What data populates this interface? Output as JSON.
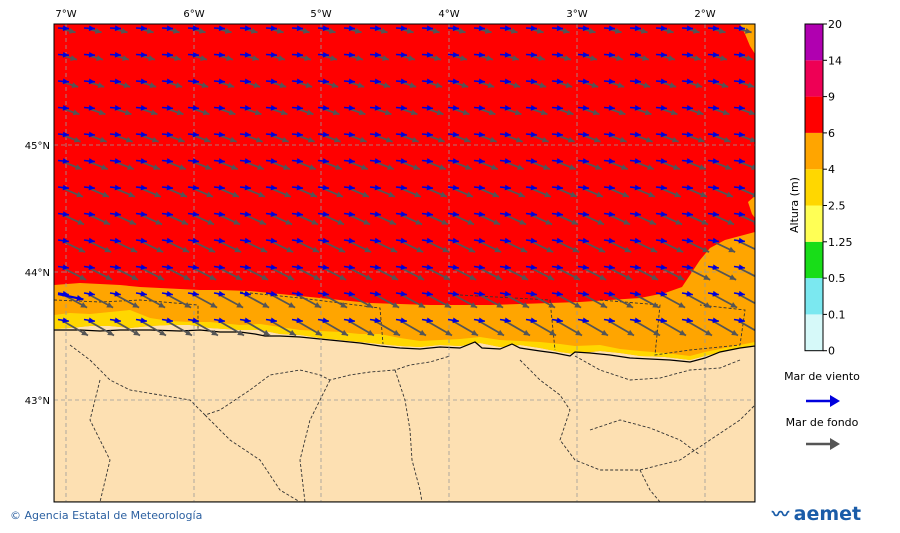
{
  "map": {
    "lon_labels": [
      "7°W",
      "6°W",
      "5°W",
      "4°W",
      "3°W",
      "2°W"
    ],
    "lat_labels": [
      "45°N",
      "44°N",
      "43°N"
    ]
  },
  "colorbar": {
    "title": "Altura (m)",
    "levels": [
      "0",
      "0.1",
      "0.5",
      "1.25",
      "2.5",
      "4",
      "6",
      "9",
      "14",
      "20"
    ],
    "colors": [
      "#d6f9f9",
      "#7be8f0",
      "#18dd18",
      "#ffff55",
      "#ffd700",
      "#ffa500",
      "#ff0000",
      "#ee0055",
      "#b000b0"
    ]
  },
  "legend": {
    "wind_sea_label": "Mar de viento",
    "wind_sea_color": "#0000dd",
    "swell_label": "Mar de fondo",
    "swell_color": "#555555"
  },
  "footer": {
    "credit": "© Agencia Estatal de Meteorología",
    "brand": "aemet"
  }
}
